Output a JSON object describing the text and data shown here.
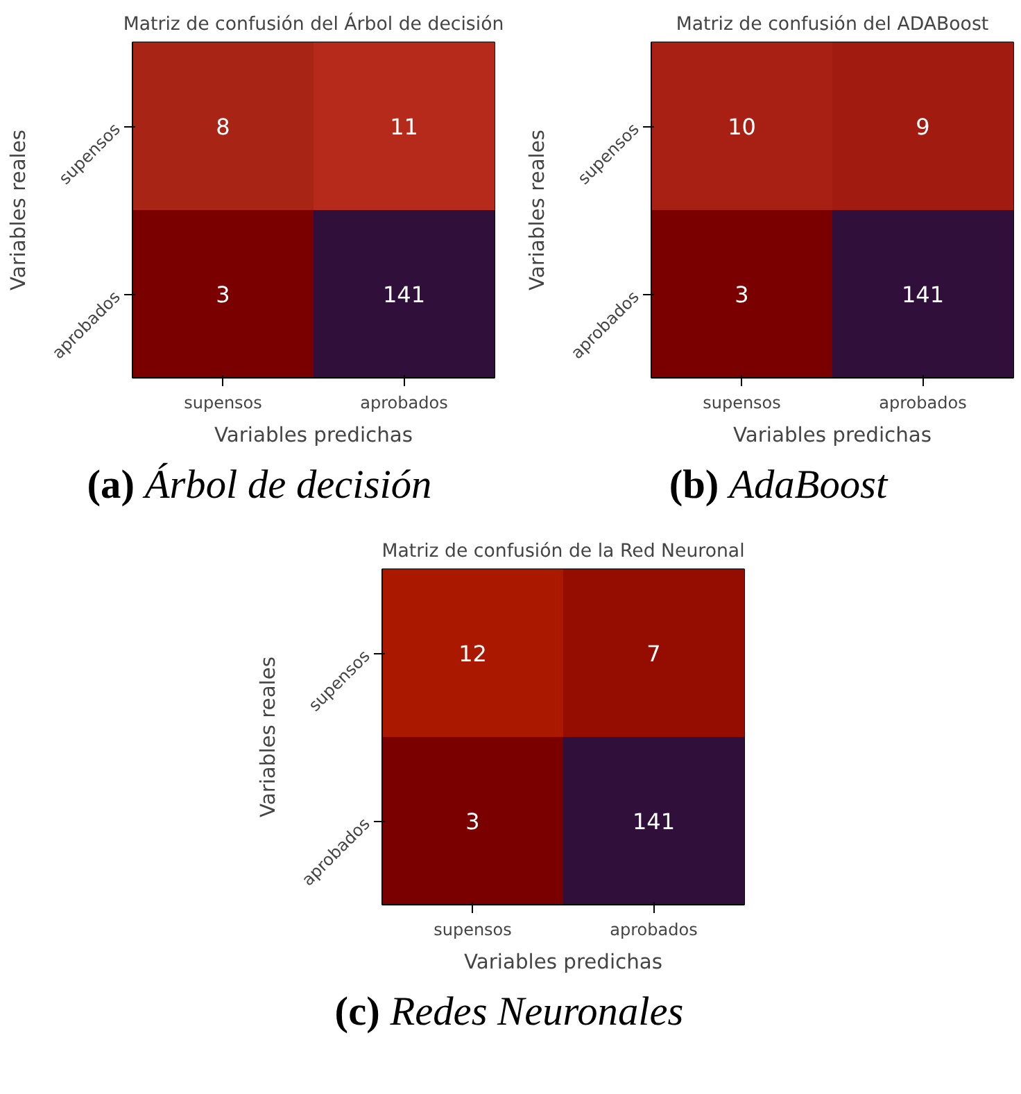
{
  "chart_data": [
    {
      "type": "heatmap",
      "title": "Matriz de confusión del Árbol de decisión",
      "xlabel": "Variables predichas",
      "ylabel": "Variables reales",
      "categories": [
        "supensos",
        "aprobados"
      ],
      "y_categories": [
        "supensos",
        "aprobados"
      ],
      "cells": [
        [
          8,
          11
        ],
        [
          3,
          141
        ]
      ],
      "colors": [
        "#a82414",
        "#b52a1a",
        "#7a0000",
        "#30103a"
      ],
      "data_labels": true,
      "annotations": [
        "(a) Árbol de decisión"
      ]
    },
    {
      "type": "heatmap",
      "title": "Matriz de confusión del ADABoost",
      "xlabel": "Variables predichas",
      "ylabel": "Variables reales",
      "categories": [
        "supensos",
        "aprobados"
      ],
      "y_categories": [
        "supensos",
        "aprobados"
      ],
      "cells": [
        [
          10,
          9
        ],
        [
          3,
          141
        ]
      ],
      "colors": [
        "#a82013",
        "#a21b10",
        "#7a0000",
        "#30103a"
      ],
      "data_labels": true,
      "annotations": [
        "(b) AdaBoost"
      ]
    },
    {
      "type": "heatmap",
      "title": "Matriz de confusión de la Red Neuronal",
      "xlabel": "Variables predichas",
      "ylabel": "Variables reales",
      "categories": [
        "supensos",
        "aprobados"
      ],
      "y_categories": [
        "supensos",
        "aprobados"
      ],
      "cells": [
        [
          12,
          7
        ],
        [
          3,
          141
        ]
      ],
      "colors": [
        "#aa1800",
        "#950d00",
        "#7a0000",
        "#30103a"
      ],
      "data_labels": true,
      "annotations": [
        "(c) Redes Neuronales"
      ]
    }
  ]
}
